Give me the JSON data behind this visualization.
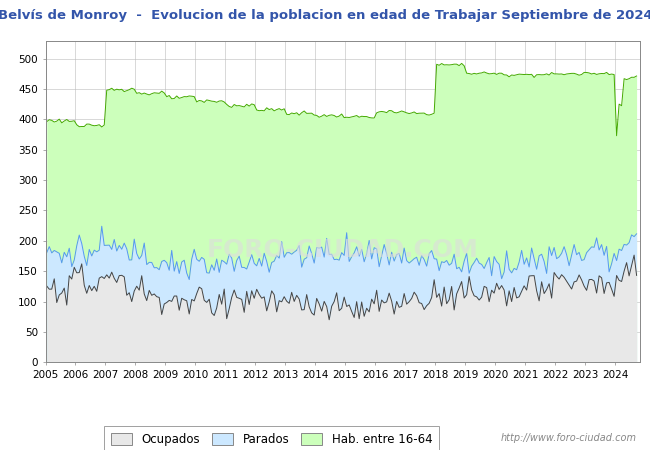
{
  "title_line1": "Belvís de Monroy  -  Evolucion de la poblacion en edad de Trabajar Septiembre de 2024",
  "title_color": "#3355AA",
  "title_fontsize": 9.5,
  "xlim": [
    2005,
    2024.83
  ],
  "ylim": [
    0,
    530
  ],
  "yticks": [
    0,
    50,
    100,
    150,
    200,
    250,
    300,
    350,
    400,
    450,
    500
  ],
  "xtick_years": [
    2005,
    2006,
    2007,
    2008,
    2009,
    2010,
    2011,
    2012,
    2013,
    2014,
    2015,
    2016,
    2017,
    2018,
    2019,
    2020,
    2021,
    2022,
    2023,
    2024
  ],
  "color_hab": "#CCFFBB",
  "color_parados": "#CCE8FF",
  "color_ocupados": "#E8E8E8",
  "line_color_hab": "#44AA00",
  "line_color_parados": "#5599EE",
  "line_color_ocupados": "#444444",
  "url_text": "http://www.foro-ciudad.com",
  "legend_labels": [
    "Ocupados",
    "Parados",
    "Hab. entre 16-64"
  ],
  "watermark": "FORO-CIUDAD.COM"
}
